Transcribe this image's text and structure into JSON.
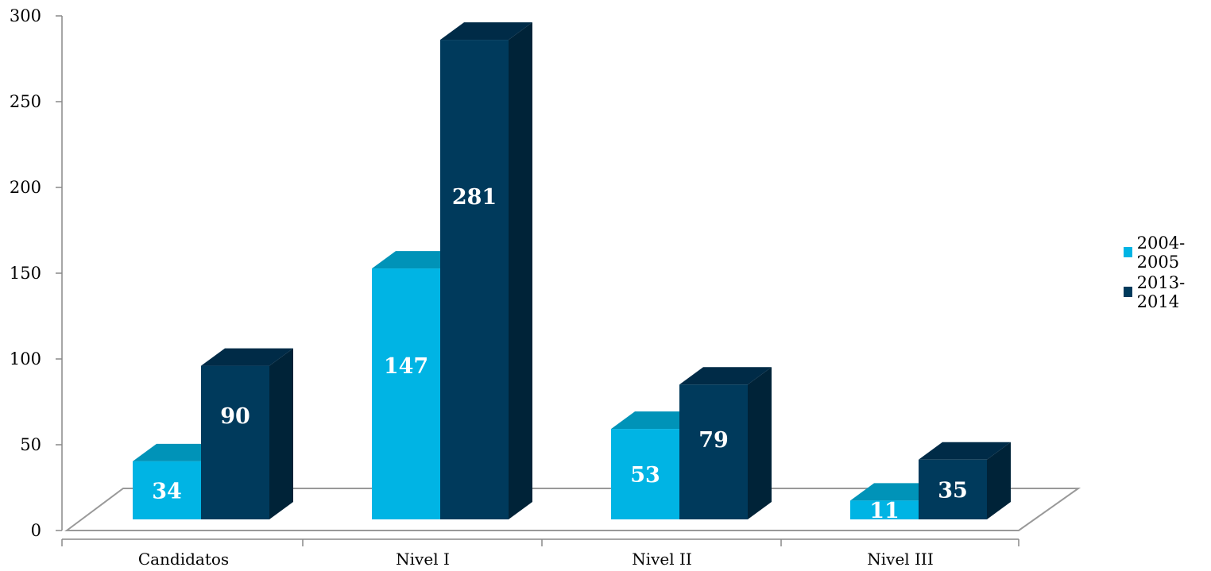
{
  "chart_data": {
    "type": "bar",
    "title": "",
    "xlabel": "",
    "ylabel": "",
    "categories": [
      "Candidatos",
      "Nivel I",
      "Nivel II",
      "Nivel III"
    ],
    "series": [
      {
        "name": "2004-2005",
        "values": [
          34,
          147,
          53,
          11
        ],
        "color": "#00b4e4",
        "top_color": "#0093b8",
        "side_color": "#0080a3"
      },
      {
        "name": "2013-2014",
        "values": [
          90,
          281,
          79,
          35
        ],
        "color": "#003a5c",
        "top_color": "#002b47",
        "side_color": "#002338"
      }
    ],
    "ylim": [
      0,
      300
    ],
    "yticks": [
      "0",
      "50",
      "100",
      "150",
      "200",
      "250",
      "300"
    ],
    "legend_position": "right",
    "grid": false,
    "style": "3d-column"
  }
}
